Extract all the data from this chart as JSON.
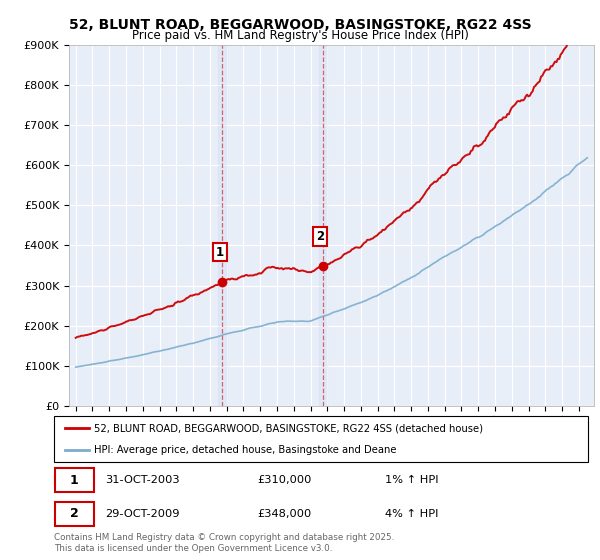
{
  "title_line1": "52, BLUNT ROAD, BEGGARWOOD, BASINGSTOKE, RG22 4SS",
  "title_line2": "Price paid vs. HM Land Registry's House Price Index (HPI)",
  "background_color": "#ffffff",
  "plot_bg_color": "#e8eef8",
  "grid_color": "#ffffff",
  "sale1_date": "31-OCT-2003",
  "sale1_price": 310000,
  "sale1_hpi": "1% ↑ HPI",
  "sale2_date": "29-OCT-2009",
  "sale2_price": 348000,
  "sale2_hpi": "4% ↑ HPI",
  "legend_label1": "52, BLUNT ROAD, BEGGARWOOD, BASINGSTOKE, RG22 4SS (detached house)",
  "legend_label2": "HPI: Average price, detached house, Basingstoke and Deane",
  "footer": "Contains HM Land Registry data © Crown copyright and database right 2025.\nThis data is licensed under the Open Government Licence v3.0.",
  "line_color_sale": "#cc0000",
  "line_color_hpi": "#7aadcc",
  "vline_color": "#cc4444",
  "ylim_min": 0,
  "ylim_max": 900000,
  "year_start": 1995,
  "year_end": 2025
}
